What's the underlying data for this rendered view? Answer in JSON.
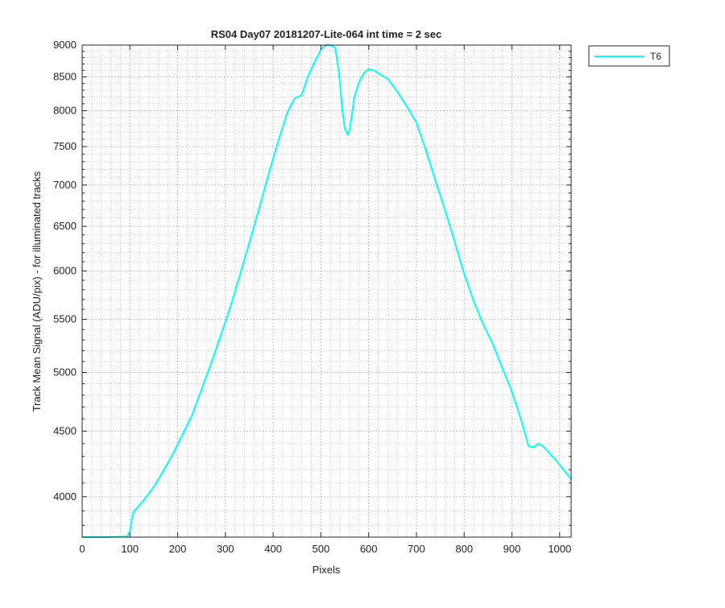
{
  "chart_data": {
    "type": "line",
    "title": "RS04 Day07 20181207-Lite-064 int time = 2 sec",
    "xlabel": "Pixels",
    "ylabel": "Track Mean Signal (ADU/pix) - for illuminated tracks",
    "xlim": [
      0,
      1024
    ],
    "ylim": [
      3720,
      9000
    ],
    "y_scale": "log",
    "grid": true,
    "minor_grid": true,
    "legend_position": "outside-top-right",
    "x_ticks": [
      0,
      100,
      200,
      300,
      400,
      500,
      600,
      700,
      800,
      900,
      1000
    ],
    "x_tick_labels": [
      "0",
      "100",
      "200",
      "300",
      "400",
      "500",
      "600",
      "700",
      "800",
      "900",
      "1000"
    ],
    "y_ticks": [
      4000,
      4500,
      5000,
      5500,
      6000,
      6500,
      7000,
      7500,
      8000,
      8500,
      9000
    ],
    "y_tick_labels": [
      "4000",
      "4500",
      "5000",
      "5500",
      "6000",
      "6500",
      "7000",
      "7500",
      "8000",
      "8500",
      "9000"
    ],
    "y_minor_ticks": [
      3800,
      3900,
      4100,
      4200,
      4300,
      4400,
      4600,
      4700,
      4800,
      4900,
      5100,
      5200,
      5300,
      5400,
      5600,
      5700,
      5800,
      5900,
      6100,
      6200,
      6300,
      6400,
      6600,
      6700,
      6800,
      6900,
      7100,
      7200,
      7300,
      7400,
      7600,
      7700,
      7800,
      7900,
      8100,
      8200,
      8300,
      8400,
      8600,
      8700,
      8800,
      8900
    ],
    "series": [
      {
        "name": "T6",
        "color": "#00ffff",
        "x": [
          0,
          50,
          95,
          100,
          103,
          106,
          110,
          130,
          150,
          170,
          190,
          210,
          230,
          250,
          270,
          290,
          310,
          330,
          350,
          370,
          390,
          410,
          430,
          445,
          460,
          470,
          480,
          490,
          500,
          510,
          520,
          530,
          538,
          545,
          550,
          556,
          560,
          565,
          570,
          580,
          590,
          600,
          610,
          620,
          640,
          660,
          680,
          700,
          720,
          740,
          760,
          780,
          800,
          820,
          840,
          860,
          880,
          900,
          920,
          935,
          945,
          955,
          965,
          975,
          990,
          1010,
          1024
        ],
        "y": [
          3720,
          3720,
          3725,
          3760,
          3820,
          3880,
          3900,
          3980,
          4070,
          4190,
          4320,
          4470,
          4630,
          4850,
          5080,
          5340,
          5620,
          5950,
          6310,
          6700,
          7130,
          7560,
          7980,
          8180,
          8230,
          8450,
          8620,
          8780,
          8930,
          9010,
          9030,
          8960,
          8550,
          8000,
          7750,
          7660,
          7730,
          7950,
          8200,
          8420,
          8560,
          8620,
          8600,
          8560,
          8470,
          8280,
          8060,
          7830,
          7450,
          7050,
          6690,
          6320,
          5970,
          5680,
          5450,
          5260,
          5040,
          4830,
          4580,
          4380,
          4370,
          4400,
          4380,
          4340,
          4280,
          4190,
          4130
        ]
      }
    ]
  }
}
